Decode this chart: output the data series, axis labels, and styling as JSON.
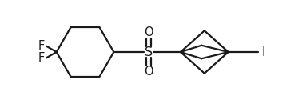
{
  "background": "#ffffff",
  "line_color": "#1a1a1a",
  "line_width": 1.6,
  "text_color": "#1a1a1a",
  "font_size": 10.5,
  "font_family": "DejaVu Sans",
  "xlim": [
    0.0,
    7.8
  ],
  "ylim": [
    0.2,
    3.0
  ],
  "figsize": [
    3.83,
    1.3
  ],
  "dpi": 100
}
